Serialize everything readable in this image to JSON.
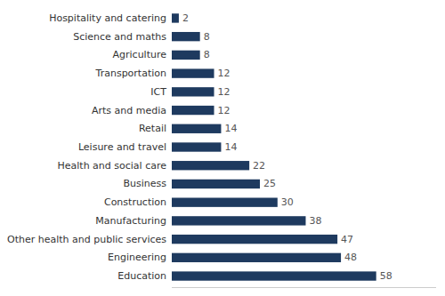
{
  "chart_data": {
    "type": "bar",
    "orientation": "horizontal",
    "categories": [
      "Education",
      "Engineering",
      "Other health and public services",
      "Manufacturing",
      "Construction",
      "Business",
      "Health and social care",
      "Leisure and travel",
      "Retail",
      "Arts and media",
      "ICT",
      "Transportation",
      "Agriculture",
      "Science and maths",
      "Hospitality and catering"
    ],
    "values": [
      58,
      48,
      47,
      38,
      30,
      25,
      22,
      14,
      14,
      12,
      12,
      12,
      8,
      8,
      2
    ],
    "color": "#1e3a5f",
    "xlim": [
      0,
      75
    ],
    "data_labels": true,
    "tick_labels": "y",
    "grid": false
  }
}
